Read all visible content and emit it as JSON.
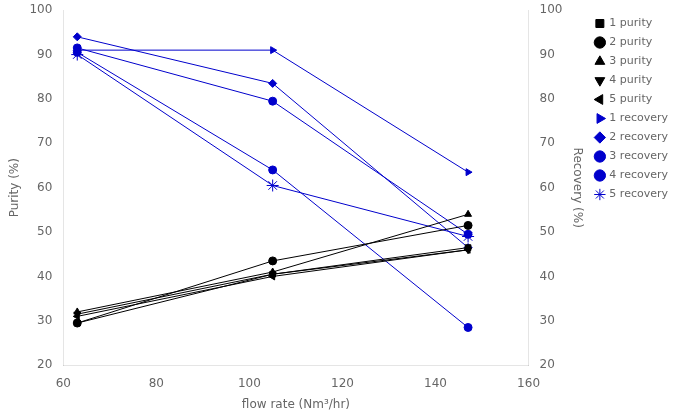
{
  "chart_data": {
    "type": "line",
    "x_label": "flow rate (Nm³/hr)",
    "y_label": "Purity (%)",
    "y2_label": "Recovery (%)",
    "x": [
      63,
      105,
      147
    ],
    "xlim": [
      60,
      160
    ],
    "xticks": [
      60,
      80,
      100,
      120,
      140,
      160
    ],
    "ylim": [
      20,
      100
    ],
    "yticks": [
      20,
      30,
      40,
      50,
      60,
      70,
      80,
      90,
      100
    ],
    "y2lim": [
      20,
      100
    ],
    "y2ticks": [
      20,
      30,
      40,
      50,
      60,
      70,
      80,
      90,
      100
    ],
    "grid": false,
    "legend": "upper right",
    "series": [
      {
        "name": "1 purity",
        "color": "#000000",
        "marker": "square",
        "values": [
          29.5,
          40.5,
          46.5
        ]
      },
      {
        "name": "2 purity",
        "color": "#000000",
        "marker": "circle",
        "values": [
          29.5,
          43.5,
          51.5
        ]
      },
      {
        "name": "3 purity",
        "color": "#000000",
        "marker": "triangle_up",
        "values": [
          32,
          41,
          54
        ]
      },
      {
        "name": "4 purity",
        "color": "#000000",
        "marker": "triangle_down",
        "values": [
          31.5,
          40.5,
          46
        ]
      },
      {
        "name": "5 purity",
        "color": "#000000",
        "marker": "triangle_left",
        "values": [
          31,
          40,
          46
        ]
      },
      {
        "name": "1 recovery",
        "color": "#0000cc",
        "marker": "triangle_right",
        "axis": "y2",
        "values": [
          91,
          91,
          63.5
        ]
      },
      {
        "name": "2 recovery",
        "color": "#0000cc",
        "marker": "diamond",
        "axis": "y2",
        "values": [
          94,
          83.5,
          46.5
        ]
      },
      {
        "name": "3 recovery",
        "color": "#0000cc",
        "marker": "circle",
        "axis": "y2",
        "values": [
          91.5,
          79.5,
          49.5
        ]
      },
      {
        "name": "4 recovery",
        "color": "#0000cc",
        "marker": "circle",
        "axis": "y2",
        "values": [
          90.5,
          64,
          28.5
        ]
      },
      {
        "name": "5 recovery",
        "color": "#0000cc",
        "marker": "star",
        "axis": "y2",
        "values": [
          90,
          60.5,
          49
        ]
      }
    ]
  }
}
